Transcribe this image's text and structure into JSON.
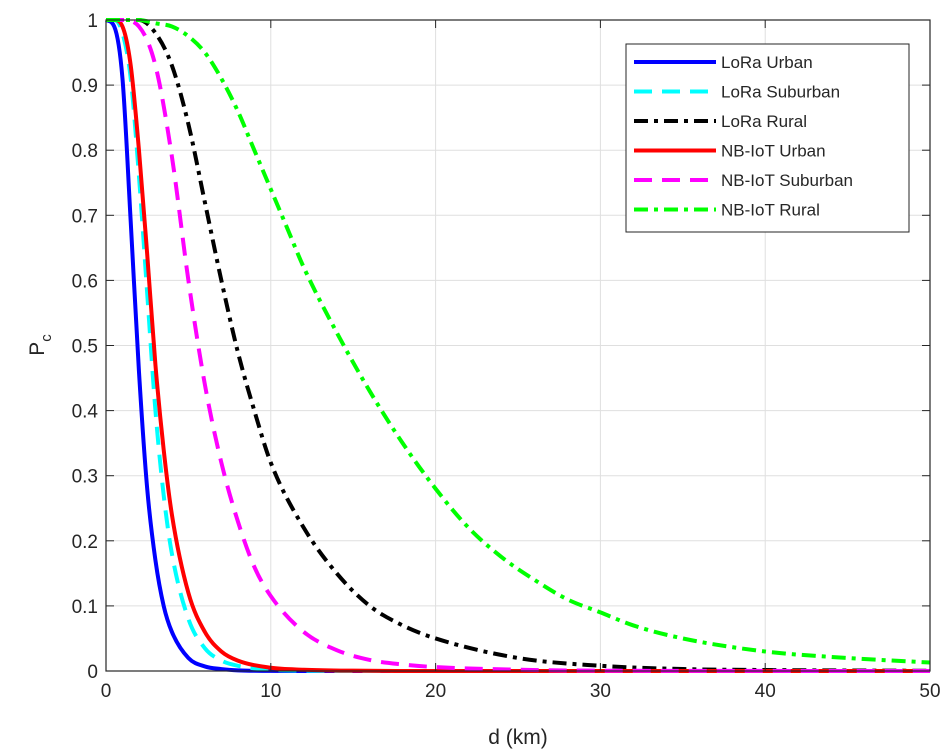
{
  "chart_data": {
    "type": "line",
    "xlabel": "d (km)",
    "ylabel": {
      "main": "P",
      "sub": "c"
    },
    "xlim": [
      0,
      50
    ],
    "ylim": [
      0,
      1
    ],
    "xticks": [
      0,
      10,
      20,
      30,
      40,
      50
    ],
    "yticks": [
      0,
      0.1,
      0.2,
      0.3,
      0.4,
      0.5,
      0.6,
      0.7,
      0.8,
      0.9,
      1
    ],
    "grid": true,
    "legend_position": "top-right",
    "series": [
      {
        "name": "LoRa Urban",
        "color": "#0000ff",
        "style": "solid",
        "x": [
          0,
          0.5,
          1,
          1.5,
          2,
          2.5,
          3,
          3.5,
          4,
          5,
          6,
          7,
          8,
          10,
          12,
          15,
          20,
          30,
          50
        ],
        "y": [
          1,
          0.99,
          0.91,
          0.69,
          0.46,
          0.28,
          0.17,
          0.1,
          0.06,
          0.02,
          0.007,
          0.003,
          0.001,
          0.0002,
          0,
          0,
          0,
          0,
          0
        ]
      },
      {
        "name": "LoRa Suburban",
        "color": "#00ffff",
        "style": "dashed",
        "x": [
          0,
          0.5,
          1,
          1.5,
          2,
          2.5,
          3,
          3.5,
          4,
          5,
          6,
          7,
          8,
          10,
          12,
          15,
          20,
          30,
          50
        ],
        "y": [
          1,
          1,
          0.98,
          0.91,
          0.76,
          0.58,
          0.4,
          0.27,
          0.18,
          0.08,
          0.035,
          0.016,
          0.008,
          0.002,
          0.0006,
          0,
          0,
          0,
          0
        ]
      },
      {
        "name": "LoRa Rural",
        "color": "#000000",
        "style": "dashdot",
        "x": [
          0,
          1,
          2,
          3,
          4,
          5,
          6,
          7,
          8,
          9,
          10,
          12,
          14,
          16,
          18,
          20,
          25,
          30,
          35,
          40,
          50
        ],
        "y": [
          1,
          1,
          1,
          0.98,
          0.93,
          0.84,
          0.72,
          0.6,
          0.49,
          0.4,
          0.32,
          0.22,
          0.15,
          0.1,
          0.07,
          0.05,
          0.02,
          0.008,
          0.003,
          0.0015,
          0.0003
        ]
      },
      {
        "name": "NB-IoT Urban",
        "color": "#ff0000",
        "style": "solid",
        "x": [
          0,
          0.5,
          1,
          1.5,
          2,
          2.5,
          3,
          3.5,
          4,
          5,
          6,
          7,
          8,
          10,
          12,
          15,
          20,
          30,
          50
        ],
        "y": [
          1,
          1,
          0.99,
          0.93,
          0.8,
          0.64,
          0.47,
          0.34,
          0.24,
          0.12,
          0.06,
          0.03,
          0.016,
          0.005,
          0.002,
          0.0005,
          0,
          0,
          0
        ]
      },
      {
        "name": "NB-IoT Suburban",
        "color": "#ff00ff",
        "style": "dashed",
        "x": [
          0,
          1,
          2,
          3,
          4,
          5,
          6,
          7,
          8,
          9,
          10,
          12,
          14,
          16,
          18,
          20,
          25,
          30,
          40,
          50
        ],
        "y": [
          1,
          1,
          0.99,
          0.93,
          0.79,
          0.6,
          0.44,
          0.32,
          0.23,
          0.16,
          0.115,
          0.06,
          0.032,
          0.017,
          0.01,
          0.006,
          0.002,
          0.0005,
          0.0001,
          0
        ]
      },
      {
        "name": "NB-IoT Rural",
        "color": "#00ff00",
        "style": "dashdot",
        "x": [
          0,
          2,
          3,
          4,
          5,
          6,
          7,
          8,
          9,
          10,
          11,
          12,
          14,
          16,
          18,
          20,
          22,
          24,
          26,
          28,
          30,
          32,
          35,
          40,
          45,
          50
        ],
        "y": [
          1,
          1,
          0.995,
          0.99,
          0.975,
          0.95,
          0.91,
          0.86,
          0.8,
          0.74,
          0.68,
          0.62,
          0.52,
          0.43,
          0.35,
          0.28,
          0.22,
          0.175,
          0.14,
          0.11,
          0.09,
          0.07,
          0.05,
          0.03,
          0.02,
          0.013
        ]
      }
    ]
  }
}
